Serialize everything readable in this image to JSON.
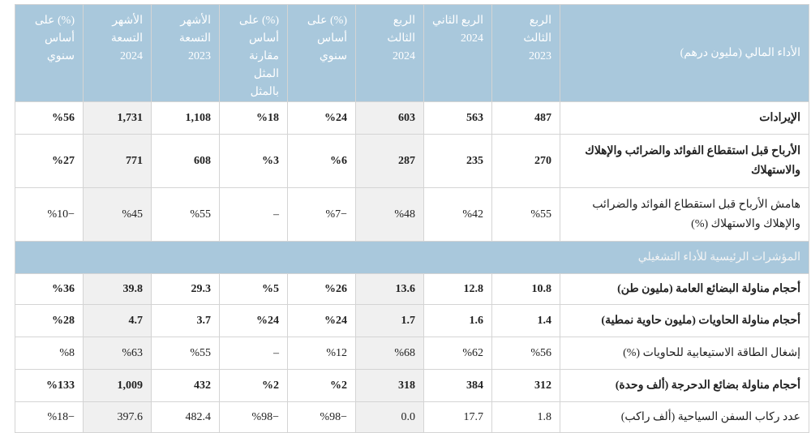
{
  "table": {
    "header": [
      "الأداء المالي (مليون درهم)",
      "الربع الثالث\n2023",
      "الربع الثاني\n2024",
      "الربع الثالث\n2024",
      "(%) على\nأساس سنوي",
      "(%) على\nأساس مقارنة\nالمثل بالمثل",
      "الأشهر\nالتسعة\n2023",
      "الأشهر\nالتسعة\n2024",
      "(%) على\nأساس سنوي"
    ],
    "rows": [
      {
        "cells": [
          "الإيرادات",
          "487",
          "563",
          "603",
          "%24",
          "%18",
          "1,108",
          "1,731",
          "%56"
        ],
        "bold": true
      },
      {
        "cells": [
          "الأرباح قبل استقطاع الفوائد والضرائب والإهلاك والاستهلاك",
          "270",
          "235",
          "287",
          "%6",
          "%3",
          "608",
          "771",
          "%27"
        ],
        "bold": true
      },
      {
        "cells": [
          "هامش الأرباح قبل استقطاع الفوائد والضرائب والإهلاك والاستهلاك (%)",
          "%55",
          "%42",
          "%48",
          "%7−",
          "–",
          "%55",
          "%45",
          "%10−"
        ],
        "bold": false
      },
      {
        "section": "المؤشرات الرئيسية للأداء التشغيلي"
      },
      {
        "cells": [
          "أحجام مناولة البضائع العامة (مليون طن)",
          "10.8",
          "12.8",
          "13.6",
          "%26",
          "%5",
          "29.3",
          "39.8",
          "%36"
        ],
        "bold": true
      },
      {
        "cells": [
          "أحجام مناولة الحاويات (مليون حاوية نمطية)",
          "1.4",
          "1.6",
          "1.7",
          "%24",
          "%24",
          "3.7",
          "4.7",
          "%28"
        ],
        "bold": true
      },
      {
        "cells": [
          "إشغال الطاقة الاستيعابية للحاويات (%)",
          "%56",
          "%62",
          "%68",
          "%12",
          "–",
          "%55",
          "%63",
          "%8"
        ],
        "bold": false
      },
      {
        "cells": [
          "أحجام مناولة بضائع الدحرجة (ألف وحدة)",
          "312",
          "384",
          "318",
          "%2",
          "%2",
          "432",
          "1,009",
          "%133"
        ],
        "bold": true
      },
      {
        "cells": [
          "عدد ركاب السفن السياحية (ألف راكب)",
          "1.8",
          "17.7",
          "0.0",
          "%98−",
          "%98−",
          "482.4",
          "397.6",
          "%18−"
        ],
        "bold": false
      }
    ]
  }
}
